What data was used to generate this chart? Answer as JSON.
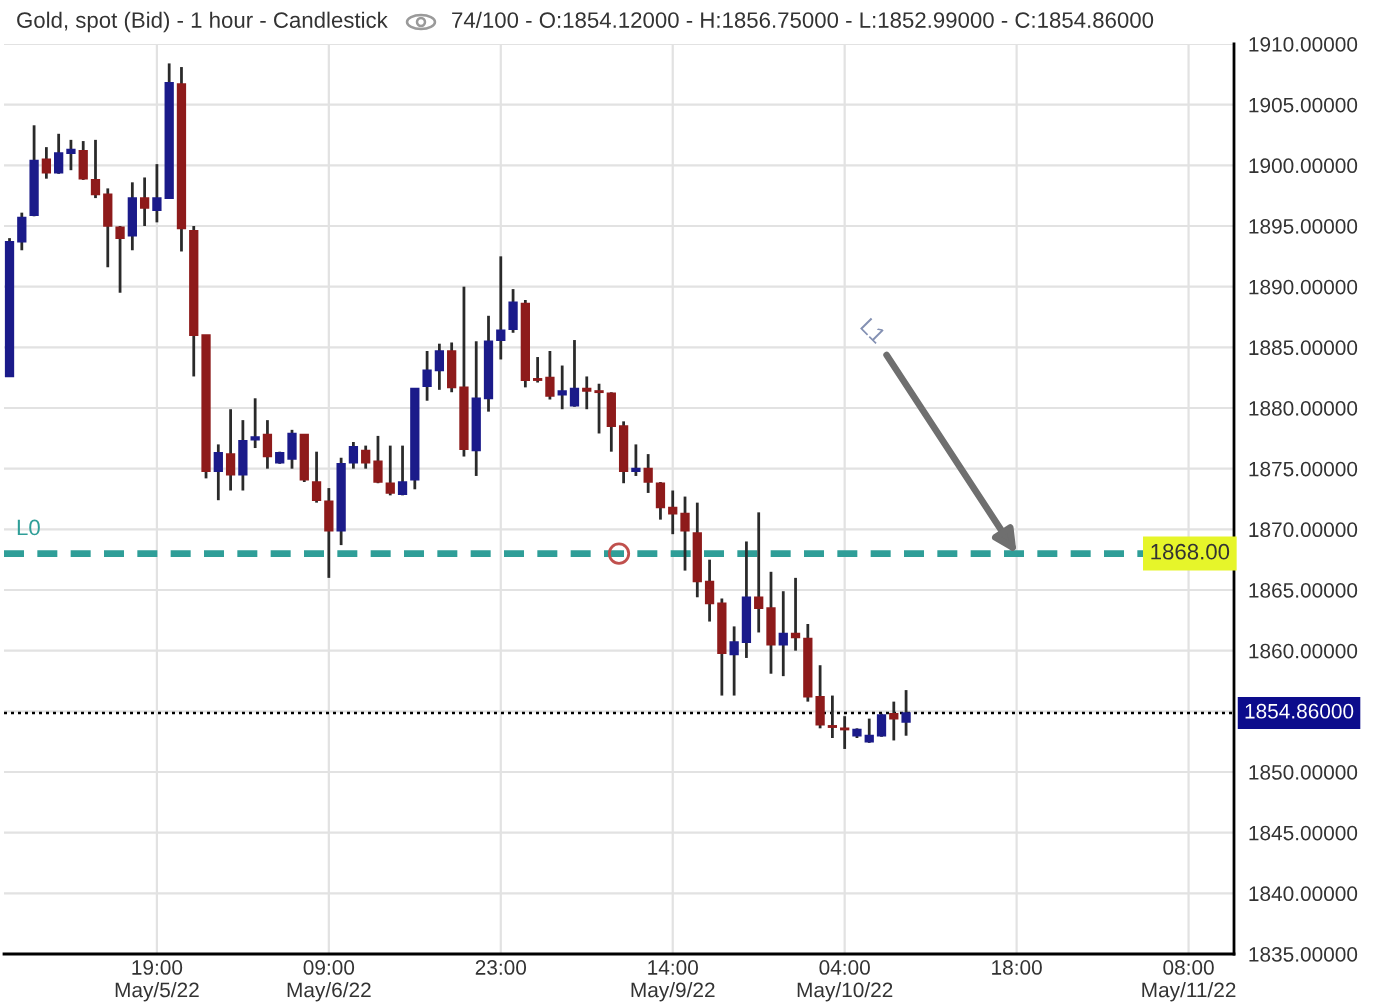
{
  "chart_data": {
    "type": "candlestick",
    "title": "Gold, spot (Bid) - 1 hour - Candlestick",
    "subtitle": "74/100 - O:1854.12000 - H:1856.75000 - L:1852.99000 - C:1854.86000",
    "categories": [
      null,
      null,
      null,
      null,
      null,
      null,
      null,
      null,
      null,
      null,
      null,
      null,
      "19:00\nMay/5/22",
      null,
      null,
      null,
      null,
      null,
      null,
      null,
      null,
      null,
      null,
      null,
      null,
      null,
      "09:00\nMay/6/22",
      null,
      null,
      null,
      null,
      null,
      null,
      null,
      null,
      null,
      null,
      null,
      null,
      null,
      "23:00",
      null,
      null,
      null,
      null,
      null,
      null,
      null,
      null,
      null,
      null,
      null,
      null,
      null,
      "14:00\nMay/9/22",
      null,
      null,
      null,
      null,
      null,
      null,
      null,
      null,
      null,
      null,
      null,
      null,
      null,
      "04:00\nMay/10/22",
      null,
      null,
      null,
      null,
      null,
      null,
      null,
      null,
      null,
      null,
      null,
      null,
      null,
      "18:00",
      null,
      null,
      null,
      null,
      null,
      null,
      null,
      null,
      null,
      null,
      null,
      null,
      null,
      "08:00\nMay/11/22",
      null,
      null,
      null
    ],
    "ohlc": [
      [
        1882.6,
        1894.0,
        1882.6,
        1893.7
      ],
      [
        1893.7,
        1896.1,
        1893.0,
        1895.7
      ],
      [
        1895.9,
        1903.3,
        1895.8,
        1900.4
      ],
      [
        1900.5,
        1901.5,
        1898.9,
        1899.4
      ],
      [
        1899.4,
        1902.6,
        1899.3,
        1901.0
      ],
      [
        1901.0,
        1902.1,
        1899.6,
        1901.3
      ],
      [
        1901.2,
        1902.0,
        1898.8,
        1898.9
      ],
      [
        1898.8,
        1902.1,
        1897.3,
        1897.6
      ],
      [
        1897.6,
        1898.1,
        1891.6,
        1895.0
      ],
      [
        1894.9,
        1895.0,
        1889.5,
        1894.0
      ],
      [
        1894.2,
        1898.6,
        1893.0,
        1897.3
      ],
      [
        1897.3,
        1899.0,
        1895.0,
        1896.5
      ],
      [
        1896.3,
        1900.1,
        1895.3,
        1897.3
      ],
      [
        1897.3,
        1908.4,
        1897.3,
        1906.8
      ],
      [
        1906.7,
        1908.1,
        1892.9,
        1894.8
      ],
      [
        1894.6,
        1895.0,
        1882.6,
        1886.0
      ],
      [
        1886.0,
        1886.0,
        1874.2,
        1874.8
      ],
      [
        1874.8,
        1877.0,
        1872.4,
        1876.3
      ],
      [
        1876.2,
        1879.9,
        1873.2,
        1874.5
      ],
      [
        1874.5,
        1879.0,
        1873.2,
        1877.3
      ],
      [
        1877.4,
        1880.8,
        1876.7,
        1877.6
      ],
      [
        1877.8,
        1879.0,
        1875.0,
        1876.0
      ],
      [
        1875.5,
        1876.4,
        1875.4,
        1876.3
      ],
      [
        1875.8,
        1878.2,
        1875.0,
        1877.9
      ],
      [
        1877.8,
        1877.8,
        1873.9,
        1874.1
      ],
      [
        1873.9,
        1876.4,
        1872.2,
        1872.4
      ],
      [
        1872.3,
        1873.4,
        1866.0,
        1869.9
      ],
      [
        1869.9,
        1875.9,
        1868.7,
        1875.4
      ],
      [
        1875.5,
        1877.2,
        1875.0,
        1876.8
      ],
      [
        1876.5,
        1876.9,
        1875.0,
        1875.5
      ],
      [
        1875.6,
        1877.7,
        1873.8,
        1873.9
      ],
      [
        1873.8,
        1876.9,
        1872.8,
        1873.0
      ],
      [
        1872.9,
        1876.9,
        1872.8,
        1873.9
      ],
      [
        1874.1,
        1881.6,
        1873.3,
        1881.6
      ],
      [
        1881.8,
        1884.7,
        1880.6,
        1883.1
      ],
      [
        1883.1,
        1885.3,
        1881.5,
        1884.7
      ],
      [
        1884.7,
        1885.4,
        1881.3,
        1881.7
      ],
      [
        1881.7,
        1890.0,
        1876.0,
        1876.6
      ],
      [
        1876.5,
        1885.5,
        1874.4,
        1880.8
      ],
      [
        1880.8,
        1887.6,
        1879.7,
        1885.5
      ],
      [
        1885.6,
        1892.5,
        1884.0,
        1886.4
      ],
      [
        1886.5,
        1889.8,
        1886.2,
        1888.7
      ],
      [
        1888.6,
        1888.9,
        1881.7,
        1882.3
      ],
      [
        1882.4,
        1884.2,
        1882.1,
        1882.3
      ],
      [
        1882.5,
        1884.7,
        1880.7,
        1881.0
      ],
      [
        1881.1,
        1883.5,
        1879.9,
        1881.4
      ],
      [
        1880.2,
        1885.6,
        1880.1,
        1881.6
      ],
      [
        1881.6,
        1882.6,
        1879.9,
        1881.4
      ],
      [
        1881.4,
        1882.0,
        1877.9,
        1881.3
      ],
      [
        1881.2,
        1881.3,
        1876.4,
        1878.5
      ],
      [
        1878.5,
        1878.9,
        1873.8,
        1874.8
      ],
      [
        1874.8,
        1877.0,
        1874.4,
        1875.0
      ],
      [
        1875.0,
        1876.2,
        1873.0,
        1873.9
      ],
      [
        1873.8,
        1873.9,
        1870.8,
        1871.8
      ],
      [
        1871.8,
        1873.2,
        1869.6,
        1871.3
      ],
      [
        1871.3,
        1872.7,
        1866.6,
        1869.9
      ],
      [
        1869.7,
        1872.2,
        1864.4,
        1865.7
      ],
      [
        1865.7,
        1867.5,
        1862.4,
        1863.9
      ],
      [
        1863.9,
        1864.3,
        1856.3,
        1859.8
      ],
      [
        1859.7,
        1862.0,
        1856.3,
        1860.7
      ],
      [
        1860.7,
        1869.0,
        1859.4,
        1864.4
      ],
      [
        1864.4,
        1871.4,
        1861.5,
        1863.5
      ],
      [
        1863.5,
        1866.5,
        1858.1,
        1860.5
      ],
      [
        1860.5,
        1864.9,
        1857.9,
        1861.4
      ],
      [
        1861.4,
        1866.0,
        1860.0,
        1861.1
      ],
      [
        1861.0,
        1862.2,
        1855.8,
        1856.2
      ],
      [
        1856.2,
        1858.8,
        1853.6,
        1853.9
      ],
      [
        1853.8,
        1856.3,
        1852.8,
        1853.7
      ],
      [
        1853.6,
        1854.6,
        1851.9,
        1853.5
      ],
      [
        1853.0,
        1853.6,
        1852.8,
        1853.5
      ],
      [
        1852.5,
        1854.4,
        1852.4,
        1853.0
      ],
      [
        1853.0,
        1854.8,
        1852.9,
        1854.7
      ],
      [
        1854.8,
        1855.8,
        1852.6,
        1854.4
      ],
      [
        1854.12,
        1856.75,
        1852.99,
        1854.86
      ],
      null,
      null,
      null,
      null,
      null,
      null,
      null,
      null,
      null,
      null,
      null,
      null,
      null,
      null,
      null,
      null,
      null,
      null,
      null,
      null,
      null,
      null,
      null,
      null,
      null,
      null
    ],
    "colors": [
      "#1b1b8a",
      "#1b1b8a",
      "#1b1b8a",
      "#8e1b1b",
      "#1b1b8a",
      "#1b1b8a",
      "#8e1b1b",
      "#8e1b1b",
      "#8e1b1b",
      "#8e1b1b",
      "#1b1b8a",
      "#8e1b1b",
      "#1b1b8a",
      "#1b1b8a",
      "#8e1b1b",
      "#8e1b1b",
      "#8e1b1b",
      "#1b1b8a",
      "#8e1b1b",
      "#1b1b8a",
      "#1b1b8a",
      "#8e1b1b",
      "#1b1b8a",
      "#1b1b8a",
      "#8e1b1b",
      "#8e1b1b",
      "#8e1b1b",
      "#1b1b8a",
      "#1b1b8a",
      "#8e1b1b",
      "#8e1b1b",
      "#8e1b1b",
      "#1b1b8a",
      "#1b1b8a",
      "#1b1b8a",
      "#1b1b8a",
      "#8e1b1b",
      "#8e1b1b",
      "#1b1b8a",
      "#1b1b8a",
      "#1b1b8a",
      "#1b1b8a",
      "#8e1b1b",
      "#8e1b1b",
      "#8e1b1b",
      "#1b1b8a",
      "#1b1b8a",
      "#8e1b1b",
      "#8e1b1b",
      "#8e1b1b",
      "#8e1b1b",
      "#1b1b8a",
      "#8e1b1b",
      "#8e1b1b",
      "#8e1b1b",
      "#8e1b1b",
      "#8e1b1b",
      "#8e1b1b",
      "#8e1b1b",
      "#1b1b8a",
      "#1b1b8a",
      "#8e1b1b",
      "#8e1b1b",
      "#1b1b8a",
      "#8e1b1b",
      "#8e1b1b",
      "#8e1b1b",
      "#8e1b1b",
      "#8e1b1b",
      "#1b1b8a",
      "#1b1b8a",
      "#1b1b8a",
      "#8e1b1b",
      "#1b1b8a",
      null,
      null,
      null,
      null,
      null,
      null,
      null,
      null,
      null,
      null,
      null,
      null,
      null,
      null,
      null,
      null,
      null,
      null,
      null,
      null,
      null,
      null,
      null,
      null,
      null,
      null
    ],
    "ylim": [
      1835,
      1910
    ],
    "yticks": [
      {
        "value": 1835,
        "label": "1835.00000"
      },
      {
        "value": 1840,
        "label": "1840.00000"
      },
      {
        "value": 1845,
        "label": "1845.00000"
      },
      {
        "value": 1850,
        "label": "1850.00000"
      },
      {
        "value": 1855,
        "label": null
      },
      {
        "value": 1860,
        "label": "1860.00000"
      },
      {
        "value": 1865,
        "label": "1865.00000"
      },
      {
        "value": 1870,
        "label": "1870.00000"
      },
      {
        "value": 1875,
        "label": "1875.00000"
      },
      {
        "value": 1880,
        "label": "1880.00000"
      },
      {
        "value": 1885,
        "label": "1885.00000"
      },
      {
        "value": 1890,
        "label": "1890.00000"
      },
      {
        "value": 1895,
        "label": "1895.00000"
      },
      {
        "value": 1900,
        "label": "1900.00000"
      },
      {
        "value": 1905,
        "label": "1905.00000"
      },
      {
        "value": 1910,
        "label": "1910.00000"
      }
    ],
    "grid": true,
    "ref_lines": [
      {
        "axis": "y",
        "value": 1868,
        "label": "L0",
        "color": "#2f9e98",
        "line_style": "dashed"
      },
      {
        "axis": "y",
        "value": 1854.86,
        "label": "1854.86000",
        "color": "#000000",
        "line_style": "dotted"
      }
    ],
    "annotations": [
      {
        "text": "1868.00",
        "y": 1868
      },
      {
        "text": "L1",
        "x": "18:00",
        "y": 1868
      }
    ]
  }
}
